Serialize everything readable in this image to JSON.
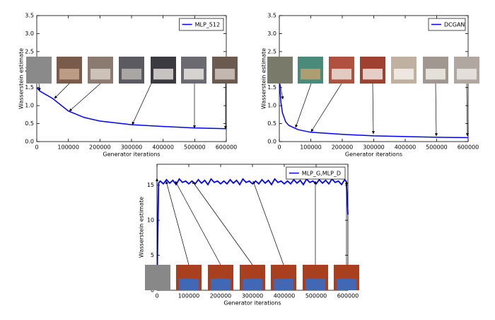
{
  "chart_data": [
    {
      "type": "line",
      "x_label": "Generator iterations",
      "y_label": "Wasserstein estimate",
      "x": [
        0,
        10000,
        20000,
        50000,
        100000,
        150000,
        200000,
        300000,
        400000,
        500000,
        600000
      ],
      "series": [
        {
          "name": "MLP_512",
          "color": "#0000ff",
          "values": [
            1.5,
            1.4,
            1.35,
            1.2,
            0.85,
            0.67,
            0.57,
            0.47,
            0.42,
            0.38,
            0.36
          ]
        }
      ],
      "xlim": [
        0,
        600000
      ],
      "ylim": [
        0,
        3.5
      ],
      "xticks": [
        0,
        100000,
        200000,
        300000,
        400000,
        500000,
        600000
      ],
      "yticks": [
        {
          "value": 0,
          "label": "0.0"
        },
        0.5,
        {
          "value": 1,
          "label": "1.0"
        },
        1.5,
        {
          "value": 2,
          "label": "2.0"
        },
        2.5,
        {
          "value": 3,
          "label": "3.0"
        },
        3.5
      ],
      "legend": "upper right"
    },
    {
      "type": "line",
      "x_label": "Generator iterations",
      "y_label": "Wasserstein estimate",
      "x": [
        0,
        5000,
        10000,
        20000,
        30000,
        60000,
        100000,
        200000,
        300000,
        400000,
        500000,
        600000
      ],
      "series": [
        {
          "name": "DCGAN",
          "color": "#0000ff",
          "values": [
            1.7,
            1.1,
            0.8,
            0.55,
            0.45,
            0.33,
            0.26,
            0.2,
            0.16,
            0.14,
            0.12,
            0.11
          ]
        }
      ],
      "xlim": [
        0,
        600000
      ],
      "ylim": [
        0,
        3.5
      ],
      "xticks": [
        0,
        100000,
        200000,
        300000,
        400000,
        500000,
        600000
      ],
      "yticks": [
        {
          "value": 0,
          "label": "0.0"
        },
        0.5,
        {
          "value": 1,
          "label": "1.0"
        },
        1.5,
        {
          "value": 2,
          "label": "2.0"
        },
        2.5,
        {
          "value": 3,
          "label": "3.0"
        },
        3.5
      ],
      "legend": "upper right"
    },
    {
      "type": "line",
      "x_label": "Generator iterations",
      "y_label": "Wasserstein estimate",
      "x": [
        0,
        5000,
        10000,
        20000,
        30000,
        40000,
        50000,
        60000,
        70000,
        80000,
        90000,
        100000,
        110000,
        120000,
        130000,
        140000,
        150000,
        160000,
        170000,
        180000,
        190000,
        200000,
        210000,
        220000,
        230000,
        240000,
        250000,
        260000,
        270000,
        280000,
        290000,
        300000,
        310000,
        320000,
        330000,
        340000,
        350000,
        360000,
        370000,
        380000,
        390000,
        400000,
        410000,
        420000,
        430000,
        440000,
        450000,
        460000,
        470000,
        480000,
        490000,
        500000,
        510000,
        520000,
        530000,
        540000,
        550000,
        560000,
        570000,
        580000,
        590000,
        595000,
        600000
      ],
      "series": [
        {
          "name": "MLP_G,MLP_D",
          "color": "#0000ff",
          "values": [
            0.5,
            15.3,
            15.6,
            15.2,
            15.8,
            15.3,
            15.7,
            15.1,
            15.9,
            15.4,
            15.6,
            15.2,
            15.6,
            15.2,
            15.8,
            15.3,
            15.7,
            15.1,
            15.9,
            15.4,
            15.6,
            15.2,
            15.6,
            15.2,
            15.8,
            15.3,
            15.7,
            15.1,
            15.9,
            15.4,
            15.6,
            15.2,
            15.6,
            15.2,
            15.8,
            15.3,
            15.7,
            15.1,
            15.9,
            15.4,
            15.6,
            15.2,
            15.6,
            15.2,
            15.8,
            15.3,
            15.7,
            15.1,
            15.9,
            15.4,
            15.6,
            15.2,
            15.8,
            15.3,
            15.7,
            15.2,
            15.9,
            15.4,
            15.6,
            15.1,
            15.8,
            15.5,
            10.8
          ]
        }
      ],
      "xlim": [
        0,
        600000
      ],
      "ylim": [
        0,
        18
      ],
      "xticks": [
        0,
        100000,
        200000,
        300000,
        400000,
        500000,
        600000
      ],
      "yticks": [
        0,
        5,
        10,
        15
      ],
      "legend": "upper right"
    }
  ]
}
